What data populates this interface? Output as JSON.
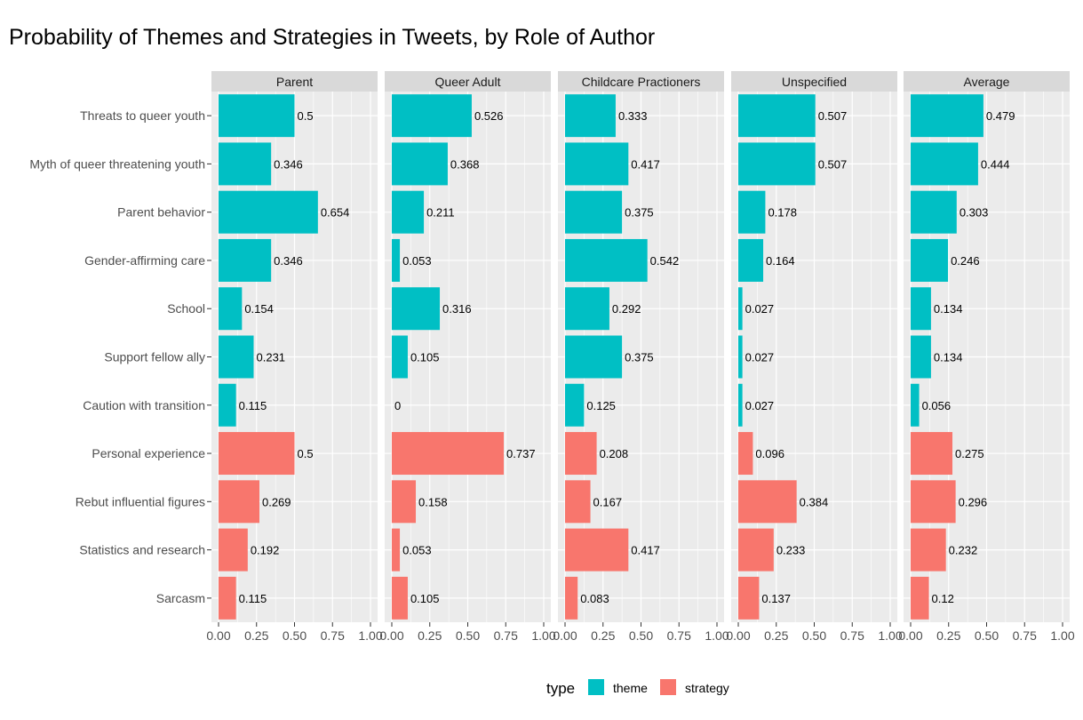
{
  "chart_data": {
    "type": "bar",
    "orientation": "horizontal",
    "title": "Probability of Themes and Strategies in Tweets, by Role of Author",
    "facets": [
      "Parent",
      "Queer Adult",
      "Childcare Practioners",
      "Unspecified",
      "Average"
    ],
    "categories": [
      "Threats to queer youth",
      "Myth of queer threatening youth",
      "Parent behavior",
      "Gender-affirming care",
      "School",
      "Support fellow ally",
      "Caution with transition",
      "Personal experience",
      "Rebut influential figures",
      "Statistics and research",
      "Sarcasm"
    ],
    "category_type": [
      "theme",
      "theme",
      "theme",
      "theme",
      "theme",
      "theme",
      "theme",
      "strategy",
      "strategy",
      "strategy",
      "strategy"
    ],
    "series": [
      {
        "name": "Parent",
        "values": [
          0.5,
          0.346,
          0.654,
          0.346,
          0.154,
          0.231,
          0.115,
          0.5,
          0.269,
          0.192,
          0.115
        ],
        "labels": [
          "0.5",
          "0.346",
          "0.654",
          "0.346",
          "0.154",
          "0.231",
          "0.115",
          "0.5",
          "0.269",
          "0.192",
          "0.115"
        ]
      },
      {
        "name": "Queer Adult",
        "values": [
          0.526,
          0.368,
          0.211,
          0.053,
          0.316,
          0.105,
          0,
          0.737,
          0.158,
          0.053,
          0.105
        ],
        "labels": [
          "0.526",
          "0.368",
          "0.211",
          "0.053",
          "0.316",
          "0.105",
          "0",
          "0.737",
          "0.158",
          "0.053",
          "0.105"
        ]
      },
      {
        "name": "Childcare Practioners",
        "values": [
          0.333,
          0.417,
          0.375,
          0.542,
          0.292,
          0.375,
          0.125,
          0.208,
          0.167,
          0.417,
          0.083
        ],
        "labels": [
          "0.333",
          "0.417",
          "0.375",
          "0.542",
          "0.292",
          "0.375",
          "0.125",
          "0.208",
          "0.167",
          "0.417",
          "0.083"
        ]
      },
      {
        "name": "Unspecified",
        "values": [
          0.507,
          0.507,
          0.178,
          0.164,
          0.027,
          0.027,
          0.027,
          0.096,
          0.384,
          0.233,
          0.137
        ],
        "labels": [
          "0.507",
          "0.507",
          "0.178",
          "0.164",
          "0.027",
          "0.027",
          "0.027",
          "0.096",
          "0.384",
          "0.233",
          "0.137"
        ]
      },
      {
        "name": "Average",
        "values": [
          0.479,
          0.444,
          0.303,
          0.246,
          0.134,
          0.134,
          0.056,
          0.275,
          0.296,
          0.232,
          0.12
        ],
        "labels": [
          "0.479",
          "0.444",
          "0.303",
          "0.246",
          "0.134",
          "0.134",
          "0.056",
          "0.275",
          "0.296",
          "0.232",
          "0.12"
        ]
      }
    ],
    "xlim": [
      0,
      1
    ],
    "xticks": [
      0,
      0.25,
      0.5,
      0.75,
      1
    ],
    "xtick_labels": [
      "0.00",
      "0.25",
      "0.50",
      "0.75",
      "1.00"
    ],
    "grid": true,
    "legend": {
      "title": "type",
      "position": "bottom",
      "entries": [
        {
          "name": "theme",
          "color": "#00BFC4"
        },
        {
          "name": "strategy",
          "color": "#F8766D"
        }
      ]
    },
    "colors": {
      "theme": "#00BFC4",
      "strategy": "#F8766D",
      "panel": "#EBEBEB",
      "strip": "#D9D9D9"
    }
  }
}
